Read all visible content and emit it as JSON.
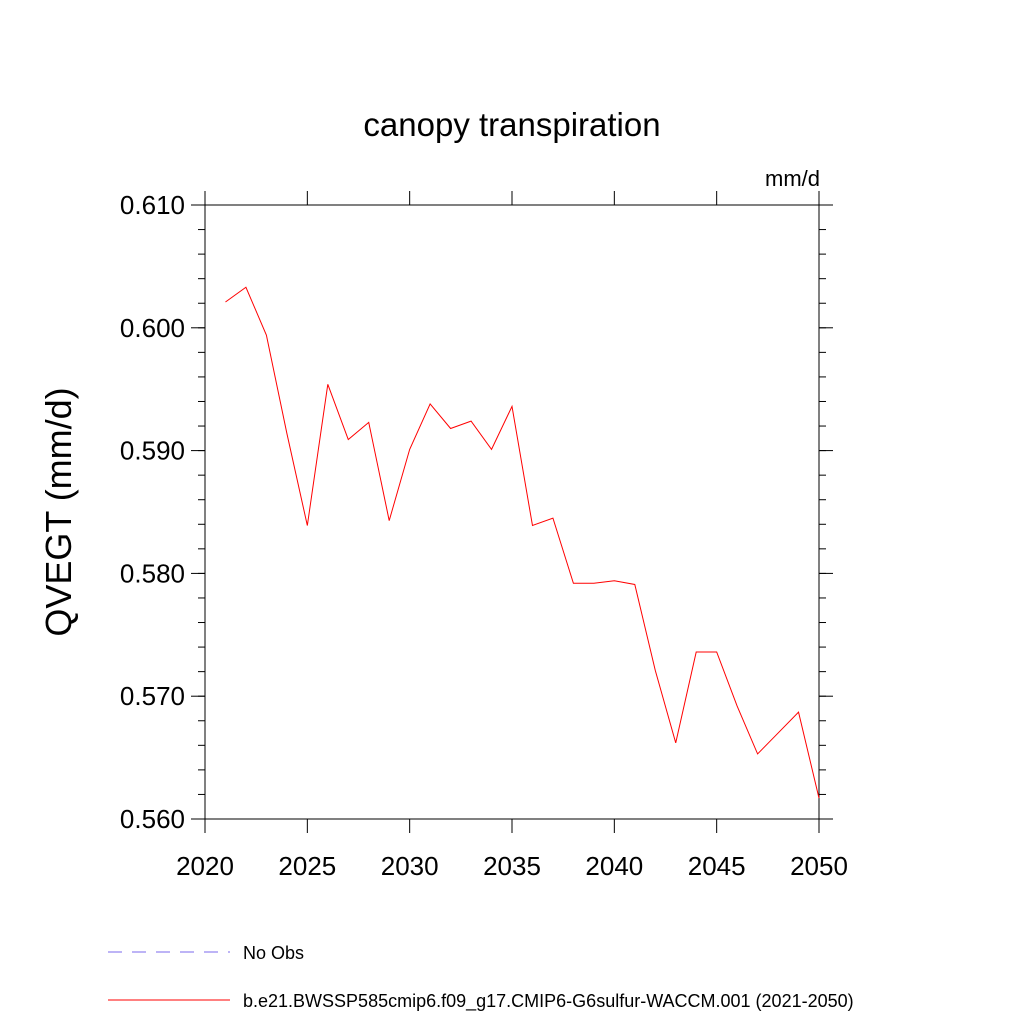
{
  "chart_data": {
    "type": "line",
    "title": "canopy transpiration",
    "units": "mm/d",
    "xlabel": "",
    "ylabel": "QVEGT  (mm/d)",
    "xlim": [
      2020,
      2050
    ],
    "ylim": [
      0.56,
      0.61
    ],
    "xticks": [
      2020,
      2025,
      2030,
      2035,
      2040,
      2045,
      2050
    ],
    "xtick_labels": [
      "2020",
      "2025",
      "2030",
      "2035",
      "2040",
      "2045",
      "2050"
    ],
    "yticks": [
      0.56,
      0.57,
      0.58,
      0.59,
      0.6,
      0.61
    ],
    "ytick_labels": [
      "0.560",
      "0.570",
      "0.580",
      "0.590",
      "0.600",
      "0.610"
    ],
    "grid": false,
    "legend_position": "bottom",
    "series": [
      {
        "name": "b.e21.BWSSP585cmip6.f09_g17.CMIP6-G6sulfur-WACCM.001 (2021-2050)",
        "color": "#ff0000",
        "style": "solid",
        "x": [
          2021,
          2022,
          2023,
          2024,
          2025,
          2026,
          2027,
          2028,
          2029,
          2030,
          2031,
          2032,
          2033,
          2034,
          2035,
          2036,
          2037,
          2038,
          2039,
          2040,
          2041,
          2042,
          2043,
          2044,
          2045,
          2046,
          2047,
          2048,
          2049,
          2050
        ],
        "y": [
          0.6021,
          0.6033,
          0.5994,
          0.5914,
          0.5839,
          0.5954,
          0.5909,
          0.5923,
          0.5843,
          0.5901,
          0.5938,
          0.5918,
          0.5924,
          0.5901,
          0.5936,
          0.5839,
          0.5845,
          0.5792,
          0.5792,
          0.5794,
          0.5791,
          0.5721,
          0.5662,
          0.5736,
          0.5736,
          0.5692,
          0.5653,
          0.567,
          0.5687,
          0.5617
        ]
      }
    ],
    "legend": [
      {
        "label": "No Obs",
        "color": "#7b68ee",
        "style": "dashed"
      },
      {
        "label": "b.e21.BWSSP585cmip6.f09_g17.CMIP6-G6sulfur-WACCM.001 (2021-2050)",
        "color": "#ff0000",
        "style": "solid"
      }
    ]
  }
}
